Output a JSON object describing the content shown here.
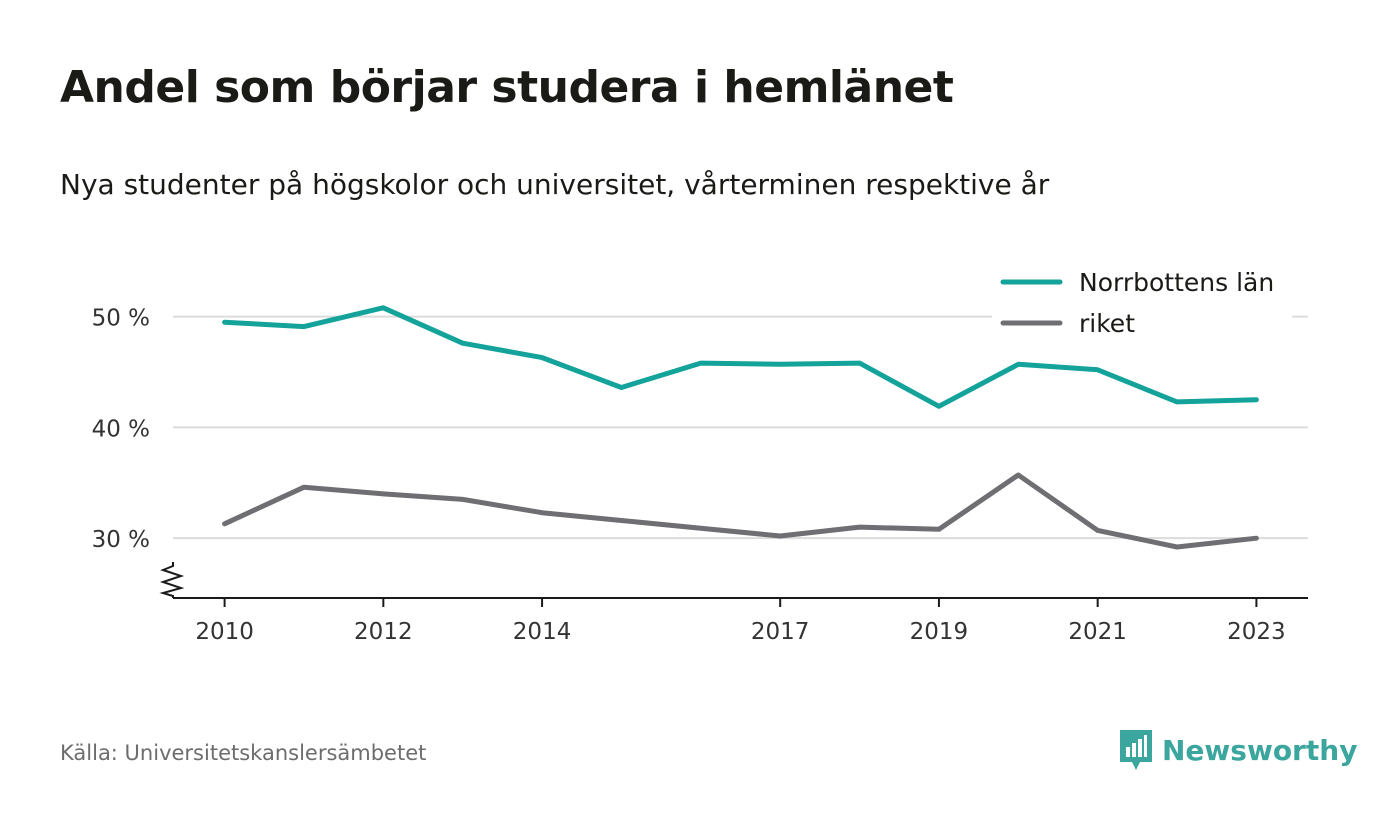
{
  "title": "Andel som börjar studera i hemlänet",
  "subtitle": "Nya studenter på högskolor och universitet, vårterminen respektive år",
  "source": "Källa: Universitetskanslersämbetet",
  "brand": {
    "name": "Newsworthy",
    "icon": "newsworthy-logo-icon",
    "color": "#3aa69d"
  },
  "chart_data": {
    "type": "line",
    "title": "Andel som börjar studera i hemlänet",
    "subtitle": "Nya studenter på högskolor och universitet, vårterminen respektive år",
    "x": [
      2010,
      2011,
      2012,
      2013,
      2014,
      2015,
      2016,
      2017,
      2018,
      2019,
      2020,
      2021,
      2022,
      2023
    ],
    "x_tick_values": [
      2010,
      2012,
      2014,
      2017,
      2019,
      2021,
      2023
    ],
    "x_tick_labels": [
      "2010",
      "2012",
      "2014",
      "2017",
      "2019",
      "2021",
      "2023"
    ],
    "y_tick_values": [
      30,
      40,
      50
    ],
    "y_tick_labels": [
      "30 %",
      "40 %",
      "50 %"
    ],
    "xlim": [
      2009.35,
      2023.65
    ],
    "ylim": [
      24.6,
      51.5
    ],
    "y_axis_break": true,
    "grid": "horizontal",
    "legend_position": "top-right",
    "series": [
      {
        "name": "Norrbottens län",
        "color": "#14a39a",
        "values": [
          49.5,
          49.1,
          50.8,
          47.6,
          46.3,
          43.6,
          45.8,
          45.7,
          45.8,
          41.9,
          45.7,
          45.2,
          42.3,
          42.5
        ]
      },
      {
        "name": "riket",
        "color": "#6e6e73",
        "values": [
          31.3,
          34.6,
          34.0,
          33.5,
          32.3,
          31.6,
          30.9,
          30.2,
          31.0,
          30.8,
          35.7,
          30.7,
          29.2,
          30.0
        ]
      }
    ]
  }
}
